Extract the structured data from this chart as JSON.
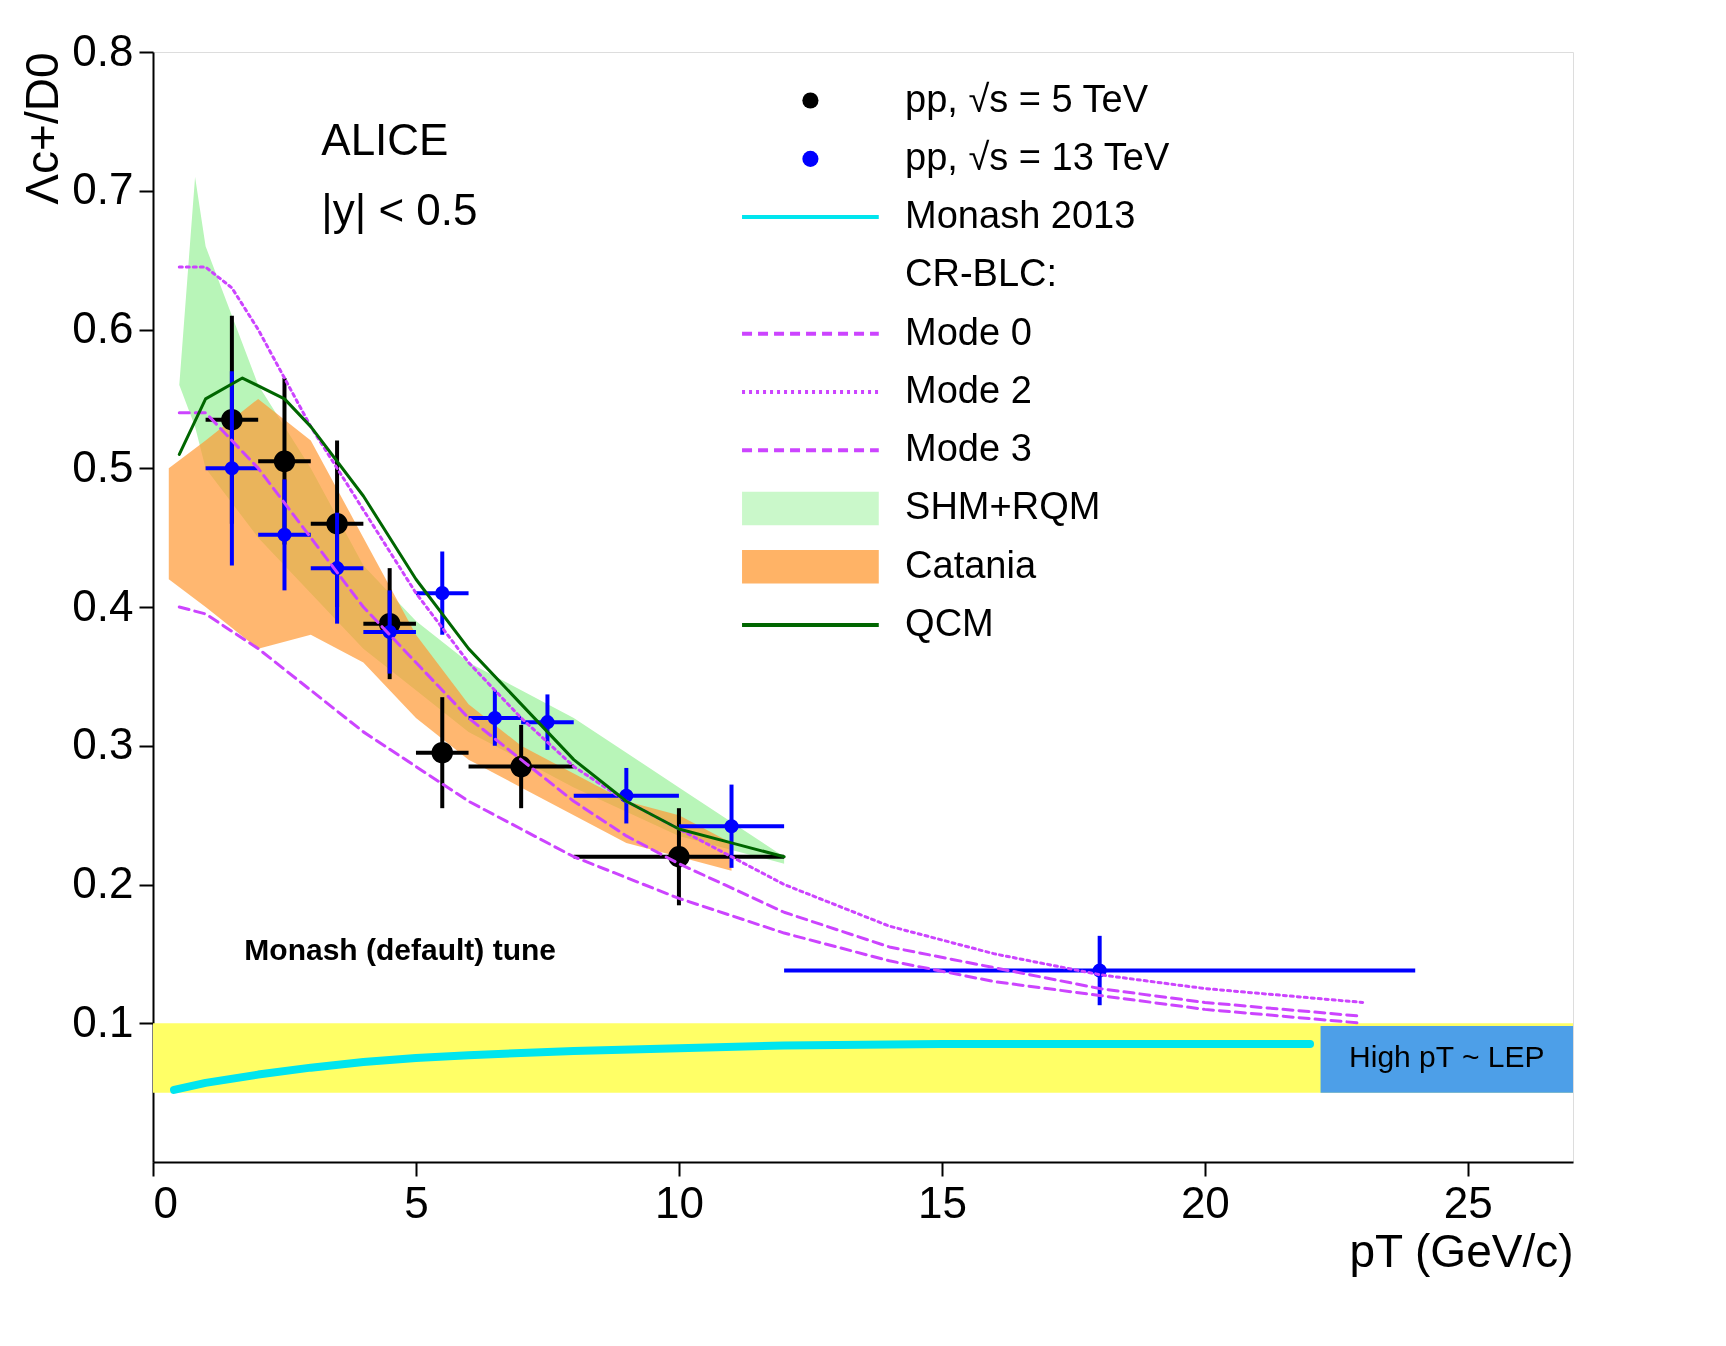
{
  "chart_data": {
    "type": "scatter",
    "xlabel": "pT (GeV/c)",
    "ylabel": "Λc+/D0",
    "xlim": [
      0,
      27
    ],
    "ylim": [
      0,
      0.8
    ],
    "xticks": [
      0,
      5,
      10,
      15,
      20,
      25
    ],
    "yticks": [
      0.1,
      0.2,
      0.3,
      0.4,
      0.5,
      0.6,
      0.7,
      0.8
    ],
    "grid": false,
    "legend": "top right",
    "marker": "circle",
    "annotations": [
      "ALICE",
      "|y| < 0.5",
      "CR-BLC:",
      "Monash (default) tune",
      "High pT ~ LEP"
    ],
    "bands": [
      {
        "axis": "y",
        "from": 0.05,
        "to": 0.1,
        "color": "#ffff66"
      }
    ],
    "series": [
      {
        "name": "pp, √s = 5 TeV",
        "color": "#000000",
        "x": [
          1.5,
          2.5,
          3.5,
          4.5,
          5.5,
          7,
          10
        ],
        "values": [
          0.535,
          0.505,
          0.46,
          0.388,
          0.295,
          0.285,
          0.22
        ],
        "errors": [
          0.075,
          0.06,
          0.06,
          0.04,
          0.04,
          0.03,
          0.035
        ],
        "xerrors": [
          0.5,
          0.5,
          0.5,
          0.5,
          0.5,
          1,
          2
        ]
      },
      {
        "name": "pp, √s = 13 TeV",
        "color": "#0000ff",
        "x": [
          1.5,
          2.5,
          3.5,
          4.5,
          5.5,
          6.5,
          7.5,
          9,
          11,
          18
        ],
        "values": [
          0.5,
          0.452,
          0.428,
          0.382,
          0.41,
          0.32,
          0.317,
          0.264,
          0.242,
          0.138
        ],
        "errors": [
          0.07,
          0.04,
          0.04,
          0.03,
          0.03,
          0.02,
          0.02,
          0.02,
          0.03,
          0.025
        ],
        "xerrors": [
          0.5,
          0.5,
          0.5,
          0.5,
          0.5,
          0.5,
          0.5,
          1,
          1,
          6
        ]
      },
      {
        "name": "Monash 2013",
        "type": "line",
        "marker": "none",
        "color": "#00e5ee",
        "line_style": "solid",
        "x": [
          0.4,
          1,
          2,
          3,
          4,
          5,
          6,
          8,
          10,
          12,
          15,
          18,
          22
        ],
        "values": [
          0.052,
          0.057,
          0.063,
          0.068,
          0.072,
          0.075,
          0.077,
          0.08,
          0.082,
          0.084,
          0.085,
          0.085,
          0.085
        ]
      },
      {
        "name": "Mode 0",
        "type": "line",
        "marker": "none",
        "color": "#cc44ff",
        "line_style": "dashed",
        "x": [
          0.5,
          1,
          1.5,
          2,
          3,
          4,
          5,
          6,
          7,
          8,
          9,
          10,
          12,
          14,
          16,
          18,
          20,
          23
        ],
        "values": [
          0.54,
          0.54,
          0.52,
          0.5,
          0.45,
          0.4,
          0.36,
          0.32,
          0.29,
          0.26,
          0.235,
          0.215,
          0.18,
          0.155,
          0.14,
          0.125,
          0.115,
          0.105
        ]
      },
      {
        "name": "Mode 2",
        "type": "line",
        "marker": "none",
        "color": "#cc44ff",
        "line_style": "dotted",
        "x": [
          0.5,
          1,
          1.5,
          2,
          3,
          4,
          5,
          6,
          7,
          8,
          9,
          10,
          12,
          14,
          16,
          18,
          20,
          23
        ],
        "values": [
          0.645,
          0.645,
          0.63,
          0.6,
          0.53,
          0.47,
          0.41,
          0.36,
          0.32,
          0.285,
          0.26,
          0.24,
          0.2,
          0.17,
          0.15,
          0.135,
          0.125,
          0.115
        ]
      },
      {
        "name": "Mode 3",
        "type": "line",
        "marker": "none",
        "color": "#cc44ff",
        "line_style": "dashed",
        "x": [
          0.5,
          1,
          2,
          3,
          4,
          5,
          6,
          7,
          8,
          9,
          10,
          12,
          14,
          16,
          18,
          20,
          23
        ],
        "values": [
          0.4,
          0.395,
          0.37,
          0.34,
          0.31,
          0.285,
          0.26,
          0.24,
          0.22,
          0.205,
          0.19,
          0.165,
          0.145,
          0.13,
          0.12,
          0.11,
          0.1
        ]
      },
      {
        "name": "SHM+RQM",
        "type": "area",
        "marker": "none",
        "color": "#b8f5b8",
        "x": [
          0.5,
          0.8,
          1,
          2,
          3,
          4,
          5,
          6,
          8,
          10,
          12
        ],
        "values": [
          null,
          null,
          null,
          null,
          null,
          null,
          null,
          null,
          null,
          null,
          null
        ],
        "upper": [
          0.56,
          0.71,
          0.66,
          0.56,
          0.5,
          0.43,
          0.39,
          0.36,
          0.32,
          0.27,
          0.22
        ],
        "lower": [
          0.56,
          0.53,
          0.5,
          0.45,
          0.41,
          0.37,
          0.34,
          0.31,
          0.27,
          0.235,
          0.215
        ]
      },
      {
        "name": "Catania",
        "type": "area",
        "marker": "none",
        "color": "#ff9933",
        "x": [
          0.3,
          1,
          2,
          3,
          4,
          5,
          6,
          7,
          8,
          9,
          10,
          11
        ],
        "values": [
          null,
          null,
          null,
          null,
          null,
          null,
          null,
          null,
          null,
          null,
          null,
          null
        ],
        "upper": [
          0.5,
          0.52,
          0.55,
          0.52,
          0.45,
          0.38,
          0.33,
          0.3,
          0.28,
          0.26,
          0.25,
          0.23
        ],
        "lower": [
          0.42,
          0.4,
          0.37,
          0.38,
          0.36,
          0.32,
          0.29,
          0.27,
          0.25,
          0.23,
          0.22,
          0.21
        ]
      },
      {
        "name": "QCM",
        "type": "line",
        "marker": "none",
        "color": "#006600",
        "line_style": "solid",
        "x": [
          0.5,
          1,
          1.7,
          2.5,
          3,
          4,
          5,
          6,
          7,
          8,
          9,
          10,
          11,
          12
        ],
        "values": [
          0.51,
          0.55,
          0.565,
          0.55,
          0.53,
          0.48,
          0.42,
          0.37,
          0.33,
          0.29,
          0.26,
          0.24,
          0.23,
          0.22
        ]
      }
    ]
  }
}
